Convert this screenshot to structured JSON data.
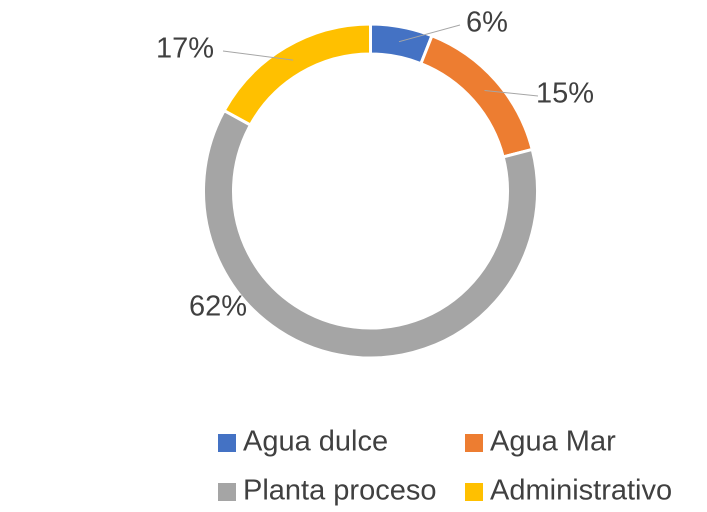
{
  "chart_data": {
    "type": "donut",
    "categories": [
      "Agua dulce",
      "Agua Mar",
      "Planta proceso",
      "Administrativo"
    ],
    "values": [
      6,
      15,
      62,
      17
    ],
    "value_labels": [
      "6%",
      "15%",
      "62%",
      "17%"
    ],
    "colors": [
      "#4472c4",
      "#ed7d31",
      "#a5a5a5",
      "#ffc000"
    ],
    "legend": "bottom"
  }
}
